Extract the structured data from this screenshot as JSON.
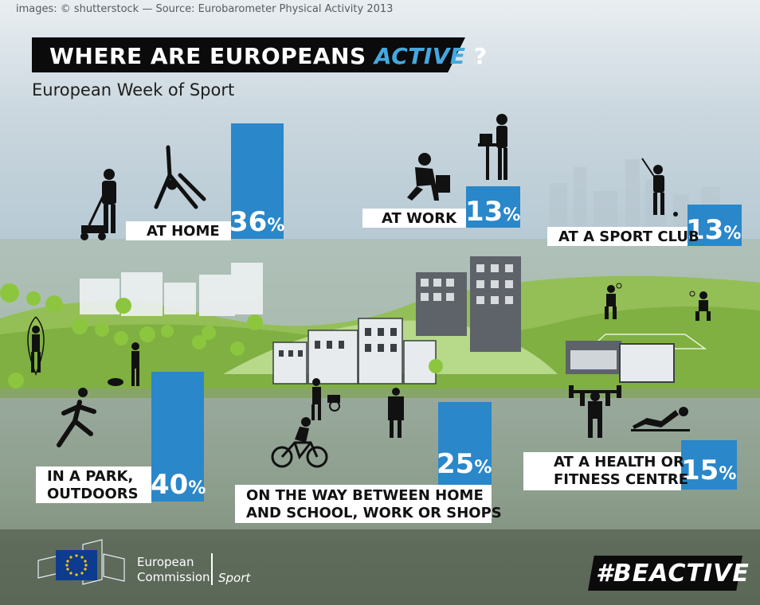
{
  "credit": "images: © shutterstock — Source: Eurobarometer Physical Activity 2013",
  "title": {
    "main": "WHERE ARE EUROPEANS",
    "accent": "ACTIVE",
    "end": "?"
  },
  "subtitle": "European Week of Sport",
  "stats": {
    "home": {
      "label": "AT HOME",
      "value": "36",
      "unit": "%"
    },
    "work": {
      "label": "AT WORK",
      "value": "13",
      "unit": "%"
    },
    "club": {
      "label": "AT A SPORT CLUB",
      "value": "13",
      "unit": "%"
    },
    "park": {
      "label_1": "IN A PARK,",
      "label_2": "OUTDOORS",
      "value": "40",
      "unit": "%"
    },
    "commute": {
      "label_1": "ON THE WAY BETWEEN HOME",
      "label_2": "AND SCHOOL, WORK OR SHOPS",
      "value": "25",
      "unit": "%"
    },
    "fitness": {
      "label_1": "AT A HEALTH OR",
      "label_2": "FITNESS CENTRE",
      "value": "15",
      "unit": "%"
    }
  },
  "footer": {
    "ec_line1": "European",
    "ec_line2": "Commission",
    "sport": "Sport",
    "hashtag": "#BEACTIVE"
  },
  "colors": {
    "bar": "#2a87c9",
    "title_bg": "#0b0b0b",
    "accent": "#43a9e0"
  }
}
